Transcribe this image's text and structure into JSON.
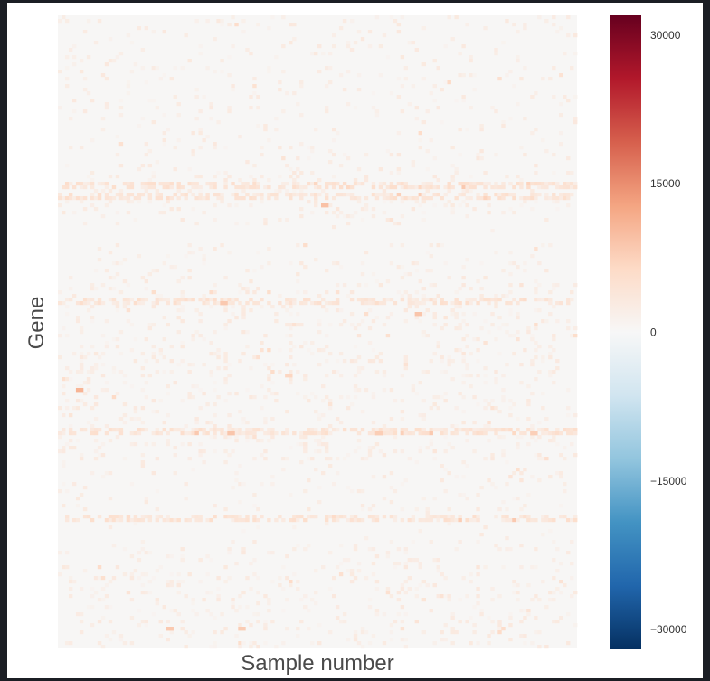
{
  "chart_data": {
    "type": "heatmap",
    "title": "",
    "xlabel": "Sample number",
    "ylabel": "Gene",
    "colorbar": {
      "range": [
        -32000,
        32000
      ],
      "ticks": [
        30000,
        15000,
        0,
        -15000,
        -30000
      ],
      "tick_labels": [
        "30000",
        "15000",
        "0",
        "−15000",
        "−30000"
      ],
      "colormap": "RdBu_r",
      "colors": [
        "#053061",
        "#2166ac",
        "#4393c3",
        "#92c5de",
        "#d1e5f0",
        "#f7f7f7",
        "#fddbc7",
        "#f4a582",
        "#d6604d",
        "#b2182b",
        "#67001f"
      ],
      "position": "right"
    },
    "grid": false,
    "x_ticks_shown": false,
    "y_ticks_shown": false,
    "n_samples": 144,
    "n_genes": 175,
    "value_summary": "Mostly near-zero positive counts; sparse moderate peaks (about 3000–8000) scattered throughout; prominent high-expression gene rows near 27%, 65% and 78% of the gene axis; no negative values.",
    "highlight_rows": [
      {
        "gene_fraction": 0.265,
        "typical_value": 4200
      },
      {
        "gene_fraction": 0.283,
        "typical_value": 4600
      },
      {
        "gene_fraction": 0.45,
        "typical_value": 3600
      },
      {
        "gene_fraction": 0.655,
        "typical_value": 5200
      },
      {
        "gene_fraction": 0.79,
        "typical_value": 3200
      }
    ],
    "notable_cells": [
      {
        "sample": 73,
        "gene_fraction": 0.295,
        "value": 9500
      },
      {
        "sample": 99,
        "gene_fraction": 0.47,
        "value": 9000
      },
      {
        "sample": 45,
        "gene_fraction": 0.45,
        "value": 8500
      },
      {
        "sample": 5,
        "gene_fraction": 0.59,
        "value": 11000
      },
      {
        "sample": 47,
        "gene_fraction": 0.655,
        "value": 9000
      },
      {
        "sample": 88,
        "gene_fraction": 0.655,
        "value": 8000
      },
      {
        "sample": 131,
        "gene_fraction": 0.655,
        "value": 7800
      },
      {
        "sample": 30,
        "gene_fraction": 0.965,
        "value": 8500
      },
      {
        "sample": 50,
        "gene_fraction": 0.965,
        "value": 8200
      },
      {
        "sample": 63,
        "gene_fraction": 0.565,
        "value": 7000
      }
    ]
  }
}
